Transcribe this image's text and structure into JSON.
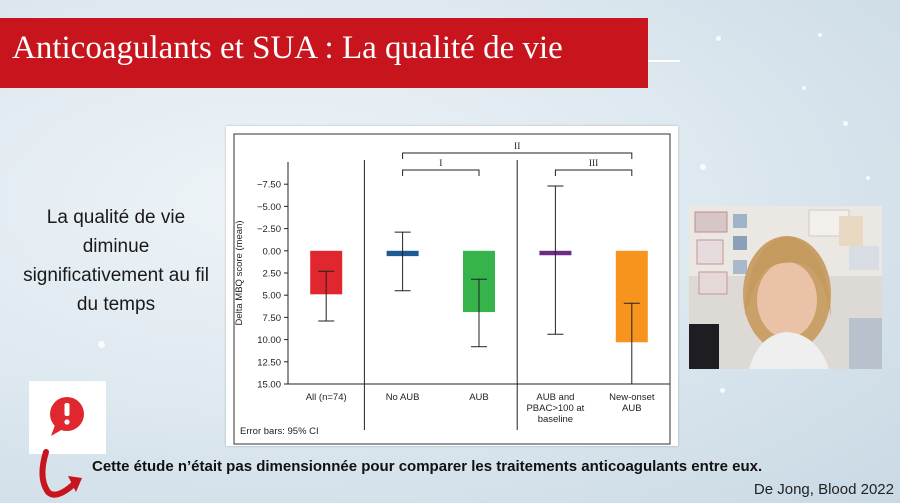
{
  "slide": {
    "title": "Anticoagulants et SUA : La qualité de vie",
    "left_text": "La qualité de vie diminue significativement au fil du temps",
    "bottom_note": "Cette étude n’était pas dimensionnée pour comparer les traitements anticoagulants entre eux.",
    "citation": "De Jong, Blood 2022",
    "warning_icon": "exclamation-speech-bubble-icon",
    "arrow_icon": "curved-arrow-icon"
  },
  "chart_data": {
    "type": "bar",
    "ylabel": "Delta MBQ score (mean)",
    "ylim": [
      -10,
      15
    ],
    "y_inverted": true,
    "y_ticks": [
      -7.5,
      -5.0,
      -2.5,
      0.0,
      2.5,
      5.0,
      7.5,
      10.0,
      12.5,
      15.0
    ],
    "y_tick_labels": [
      "−7.50",
      "−5.00",
      "−2.50",
      "0.00",
      "2.50",
      "5.00",
      "7.50",
      "10.00",
      "12.50",
      "15.00"
    ],
    "categories": [
      [
        "All (n=74)"
      ],
      [
        "No AUB"
      ],
      [
        "AUB"
      ],
      [
        "AUB and",
        "PBAC>100 at",
        "baseline"
      ],
      [
        "New-onset",
        "AUB"
      ]
    ],
    "values": [
      4.9,
      0.6,
      6.9,
      0.5,
      10.3
    ],
    "error_low": [
      2.3,
      -2.1,
      3.2,
      -7.3,
      5.9
    ],
    "error_high": [
      7.9,
      4.5,
      10.8,
      9.4,
      15.0
    ],
    "colors": [
      "#e0262f",
      "#1f5a96",
      "#36b34a",
      "#6b2d86",
      "#f7941d"
    ],
    "comparisons": [
      {
        "label": "I",
        "from": 1,
        "to": 2
      },
      {
        "label": "II",
        "from": 1,
        "to": 4
      },
      {
        "label": "III",
        "from": 3,
        "to": 4
      }
    ],
    "footnote": "Error bars: 95% CI"
  }
}
